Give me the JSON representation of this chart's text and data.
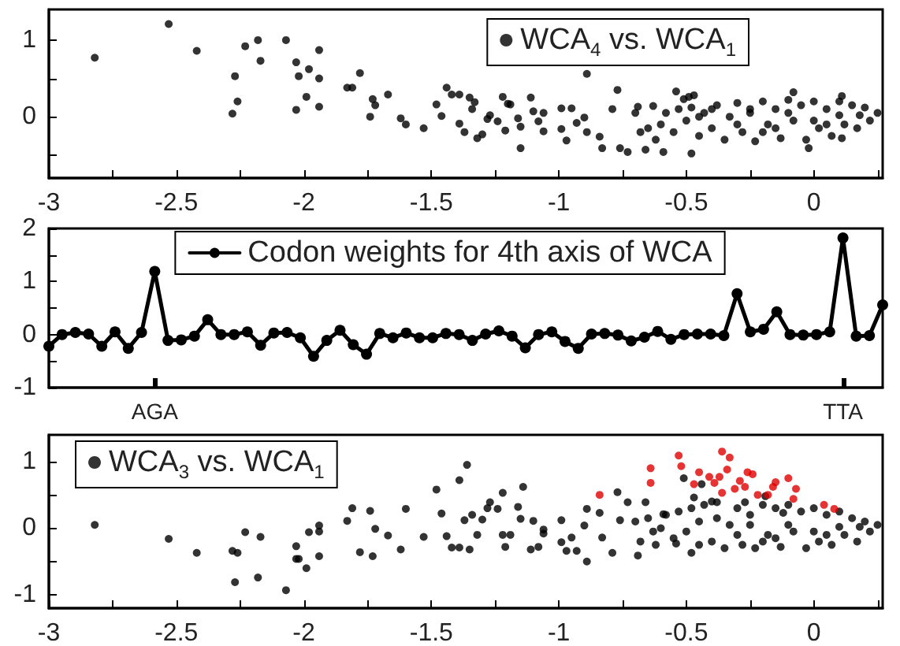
{
  "chart_data": [
    {
      "type": "scatter",
      "xlim": [
        -3,
        0.27
      ],
      "ylim": [
        -0.8,
        1.4
      ],
      "xticks": [
        -3,
        {
          "value": -2.75,
          "label": null
        },
        -2.5,
        {
          "value": -2.25,
          "label": null
        },
        -2,
        {
          "value": -1.75,
          "label": null
        },
        -1.5,
        {
          "value": -1.25,
          "label": null
        },
        -1,
        {
          "value": -0.75,
          "label": null
        },
        -0.5,
        {
          "value": -0.25,
          "label": null
        },
        0,
        {
          "value": 0.25,
          "label": null
        }
      ],
      "yticks": [
        {
          "value": -0.5,
          "label": null
        },
        0,
        {
          "value": 0.5,
          "label": null
        },
        1
      ],
      "legend": "top right",
      "marker": "circle",
      "series": [
        {
          "name": "WCA$_{4}$ vs. WCA$_{1}$",
          "color": "#000000",
          "x": [
            -2.82,
            -2.53,
            -2.42,
            -2.28,
            -2.27,
            -2.26,
            -2.23,
            -2.18,
            -2.17,
            -2.07,
            -2.03,
            -2.03,
            -2.02,
            -1.99,
            -1.98,
            -1.94,
            -1.94,
            -1.94,
            -1.83,
            -1.81,
            -1.78,
            -1.74,
            -1.73,
            -1.72,
            -1.67,
            -1.62,
            -1.6,
            -1.53,
            -1.48,
            -1.46,
            -1.44,
            -1.42,
            -1.39,
            -1.39,
            -1.37,
            -1.35,
            -1.34,
            -1.33,
            -1.32,
            -1.3,
            -1.28,
            -1.27,
            -1.24,
            -1.22,
            -1.21,
            -1.2,
            -1.19,
            -1.16,
            -1.15,
            -1.15,
            -1.11,
            -1.1,
            -1.08,
            -1.06,
            -1.06,
            -0.99,
            -0.99,
            -0.97,
            -0.95,
            -0.93,
            -0.9,
            -0.89,
            -0.89,
            -0.84,
            -0.83,
            -0.79,
            -0.77,
            -0.76,
            -0.73,
            -0.69,
            -0.66,
            -0.63,
            -0.59,
            -0.54,
            -0.51,
            -0.49,
            -0.48,
            -0.47,
            -0.08,
            -0.02,
            0.11,
            0.11,
            -0.7,
            -0.68,
            -0.65,
            -0.62,
            -0.6,
            -0.58,
            -0.55,
            -0.53,
            -0.5,
            -0.48,
            -0.45,
            -0.45,
            -0.43,
            -0.4,
            -0.4,
            -0.38,
            -0.35,
            -0.33,
            -0.3,
            -0.3,
            -0.28,
            -0.25,
            -0.25,
            -0.23,
            -0.2,
            -0.2,
            -0.18,
            -0.15,
            -0.15,
            -0.13,
            -0.1,
            -0.1,
            -0.08,
            -0.05,
            -0.03,
            0,
            0,
            0.02,
            0.05,
            0.05,
            0.07,
            0.1,
            0.1,
            0.12,
            0.15,
            0.17,
            0.18,
            0.2,
            0.22,
            0.25
          ],
          "values": [
            0.77,
            1.21,
            0.86,
            0.04,
            0.53,
            0.2,
            0.92,
            1.0,
            0.73,
            1.0,
            0.71,
            0.09,
            0.53,
            0.26,
            0.62,
            0.87,
            0.5,
            0.13,
            0.38,
            0.38,
            0.57,
            0,
            0.23,
            0.15,
            0.29,
            -0.02,
            -0.1,
            -0.15,
            0.16,
            0.01,
            0.38,
            0.29,
            0.29,
            -0.09,
            -0.2,
            0.25,
            0.1,
            0.19,
            -0.28,
            -0.23,
            -0.03,
            0.02,
            -0.06,
            0.26,
            -0.18,
            0.17,
            0.16,
            -0.02,
            -0.41,
            -0.13,
            0.25,
            0.07,
            -0.06,
            0.05,
            -0.19,
            0.11,
            -0.16,
            -0.31,
            0.11,
            -0.08,
            -0.01,
            0.56,
            -0.2,
            -0.26,
            -0.41,
            0.1,
            0.35,
            -0.41,
            -0.46,
            0.13,
            -0.43,
            0.14,
            -0.46,
            0.33,
            0.23,
            0.26,
            -0.48,
            0.28,
            0.32,
            -0.41,
            0.27,
            -0.28,
            0.05,
            -0.2,
            -0.15,
            -0.3,
            -0.1,
            0.05,
            -0.2,
            0.1,
            -0.05,
            0.12,
            -0.25,
            0,
            0.05,
            -0.15,
            0.1,
            0.15,
            -0.3,
            0,
            0.18,
            -0.1,
            -0.2,
            0.05,
            0.1,
            -0.32,
            0.2,
            -0.2,
            -0.1,
            0.1,
            -0.15,
            -0.28,
            0.22,
            0.05,
            -0.05,
            0.15,
            -0.3,
            0.2,
            -0.05,
            -0.15,
            0.1,
            -0.1,
            -0.25,
            0.2,
            0.02,
            -0.1,
            0.15,
            -0.15,
            0.02,
            0.12,
            -0.05,
            0.05
          ]
        }
      ]
    },
    {
      "type": "line",
      "categories": [
        null,
        null,
        null,
        null,
        null,
        null,
        null,
        null,
        "AGA",
        null,
        null,
        null,
        null,
        null,
        null,
        null,
        null,
        null,
        null,
        null,
        null,
        null,
        null,
        null,
        null,
        null,
        null,
        null,
        null,
        null,
        null,
        null,
        null,
        null,
        null,
        null,
        null,
        null,
        null,
        null,
        null,
        null,
        null,
        null,
        null,
        null,
        null,
        null,
        null,
        null,
        null,
        null,
        null,
        null,
        null,
        null,
        null,
        null,
        null,
        null,
        "TTA",
        null,
        null,
        null
      ],
      "ylim": [
        -1,
        2
      ],
      "yticks": [
        -1,
        {
          "value": -0.5,
          "label": null
        },
        0,
        {
          "value": 0.5,
          "label": null
        },
        1,
        {
          "value": 1.5,
          "label": null
        },
        2
      ],
      "legend": "top",
      "marker": "circle",
      "line_style": "solid",
      "series": [
        {
          "name": "Codon weights for 4th axis of WCA",
          "color": "#000000",
          "values": [
            -0.22,
            0,
            0.04,
            0.01,
            -0.22,
            0.05,
            -0.26,
            0.04,
            1.19,
            -0.11,
            -0.1,
            -0.03,
            0.28,
            0,
            0,
            0.05,
            -0.2,
            0.03,
            0.04,
            -0.06,
            -0.41,
            -0.11,
            0.08,
            -0.19,
            -0.37,
            0.02,
            -0.06,
            0.03,
            -0.06,
            -0.06,
            0.02,
            0,
            -0.11,
            0.01,
            0.07,
            -0.03,
            -0.25,
            0,
            0.05,
            -0.13,
            -0.26,
            0.01,
            0.02,
            -0.01,
            -0.12,
            -0.05,
            0.06,
            -0.09,
            0,
            0.01,
            0.01,
            -0.02,
            0.77,
            0.05,
            0.1,
            0.43,
            0,
            -0.01,
            0,
            0.05,
            1.82,
            -0.03,
            -0.02,
            0.56
          ]
        }
      ]
    },
    {
      "type": "scatter",
      "xlim": [
        -3,
        0.27
      ],
      "ylim": [
        -1.2,
        1.4
      ],
      "xticks": [
        -3,
        {
          "value": -2.75,
          "label": null
        },
        -2.5,
        {
          "value": -2.25,
          "label": null
        },
        -2,
        {
          "value": -1.75,
          "label": null
        },
        -1.5,
        {
          "value": -1.25,
          "label": null
        },
        -1,
        {
          "value": -0.75,
          "label": null
        },
        -0.5,
        {
          "value": -0.25,
          "label": null
        },
        0,
        {
          "value": 0.25,
          "label": null
        }
      ],
      "yticks": [
        -1,
        {
          "value": -0.5,
          "label": null
        },
        0,
        {
          "value": 0.5,
          "label": null
        },
        1
      ],
      "legend": "top left",
      "marker": "circle",
      "series": [
        {
          "name": "WCA$_{3}$ vs. WCA$_{1}$",
          "color": "#000000",
          "x": [
            -2.82,
            -2.53,
            -2.42,
            -2.28,
            -2.27,
            -2.26,
            -2.23,
            -2.18,
            -2.17,
            -2.07,
            -2.03,
            -2.03,
            -2.02,
            -1.99,
            -1.98,
            -1.94,
            -1.94,
            -1.94,
            -1.83,
            -1.81,
            -1.78,
            -1.74,
            -1.73,
            -1.72,
            -1.67,
            -1.62,
            -1.6,
            -1.53,
            -1.48,
            -1.46,
            -1.44,
            -1.42,
            -1.39,
            -1.39,
            -1.37,
            -1.36,
            -1.35,
            -1.34,
            -1.32,
            -1.3,
            -1.28,
            -1.27,
            -1.24,
            -1.22,
            -1.22,
            -1.21,
            -1.19,
            -1.16,
            -1.15,
            -1.14,
            -1.11,
            -1.1,
            -1.08,
            -1.06,
            -1.06,
            -0.99,
            -0.99,
            -0.97,
            -0.95,
            -0.93,
            -0.9,
            -0.89,
            -0.89,
            -0.84,
            -0.83,
            -0.79,
            -0.77,
            -0.76,
            -0.73,
            -0.69,
            -0.66,
            -0.63,
            -0.59,
            -0.54,
            -0.51,
            -0.48,
            -0.47,
            -0.44,
            -0.38,
            -0.27,
            -0.19,
            -0.12,
            -0.7,
            -0.68,
            -0.65,
            -0.62,
            -0.6,
            -0.58,
            -0.55,
            -0.53,
            -0.5,
            -0.48,
            -0.45,
            -0.45,
            -0.43,
            -0.4,
            -0.4,
            -0.38,
            -0.35,
            -0.33,
            -0.3,
            -0.3,
            -0.28,
            -0.25,
            -0.25,
            -0.23,
            -0.2,
            -0.2,
            -0.18,
            -0.15,
            -0.15,
            -0.13,
            -0.1,
            -0.1,
            -0.08,
            -0.05,
            -0.03,
            0,
            0,
            0.02,
            0.05,
            0.05,
            0.07,
            0.1,
            0.1,
            0.12,
            0.15,
            0.17,
            0.18,
            0.2,
            0.22,
            0.25
          ],
          "values": [
            0.05,
            -0.16,
            -0.37,
            -0.34,
            -0.81,
            -0.37,
            -0.06,
            -0.74,
            -0.13,
            -0.93,
            -0.27,
            -0.46,
            -0.46,
            -0.6,
            -0.06,
            0.04,
            -0.05,
            -0.42,
            0.11,
            0.3,
            -0.36,
            0.26,
            -0.42,
            -0.01,
            -0.11,
            -0.32,
            0.29,
            -0.13,
            0.58,
            0.22,
            -0.12,
            -0.29,
            0.72,
            -0.29,
            0.12,
            0.95,
            -0.32,
            0.2,
            -0.1,
            0.13,
            0.3,
            0.39,
            0.29,
            0.53,
            -0.1,
            -0.28,
            -0.1,
            0.32,
            0.14,
            0.62,
            -0.32,
            0.11,
            -0.28,
            -0.02,
            -0.08,
            -0.21,
            0.12,
            -0.34,
            -0.14,
            -0.34,
            0.04,
            -0.5,
            0.29,
            0.23,
            -0.14,
            -0.37,
            0.54,
            0.12,
            0.39,
            -0.41,
            0.39,
            -0.05,
            0.21,
            -0.23,
            0.75,
            -0.37,
            0.46,
            0.66,
            0.39,
            0.39,
            0.48,
            0.23,
            0.1,
            -0.2,
            0.15,
            -0.25,
            0,
            0.2,
            -0.15,
            0.25,
            -0.05,
            0.3,
            -0.25,
            0.1,
            0.35,
            -0.2,
            0.4,
            0.15,
            -0.3,
            0.05,
            0.3,
            -0.1,
            -0.25,
            0.2,
            0.05,
            -0.3,
            0.35,
            -0.2,
            -0.1,
            0.3,
            -0.15,
            -0.28,
            0.35,
            0.05,
            -0.05,
            0.25,
            -0.3,
            0.3,
            -0.05,
            -0.2,
            0.2,
            -0.1,
            -0.25,
            0.25,
            0.02,
            -0.1,
            0.15,
            -0.2,
            0.02,
            0.1,
            -0.05,
            0.05
          ]
        },
        {
          "color": "#e00000",
          "x": [
            -0.84,
            -0.64,
            -0.64,
            -0.53,
            -0.52,
            -0.47,
            -0.45,
            -0.41,
            -0.39,
            -0.37,
            -0.36,
            -0.34,
            -0.33,
            -0.36,
            -0.31,
            -0.29,
            -0.27,
            -0.26,
            -0.24,
            -0.22,
            -0.18,
            -0.16,
            -0.15,
            -0.1,
            -0.07,
            -0.08,
            0.04,
            0.08
          ],
          "values": [
            0.5,
            0.9,
            0.68,
            1.09,
            0.93,
            0.66,
            0.84,
            0.77,
            0.68,
            0.77,
            1.15,
            0.88,
            1.06,
            0.53,
            0.59,
            0.71,
            0.62,
            0.84,
            0.81,
            0.5,
            0.5,
            0.62,
            0.69,
            0.75,
            0.59,
            0.44,
            0.35,
            0.29
          ]
        }
      ]
    }
  ]
}
